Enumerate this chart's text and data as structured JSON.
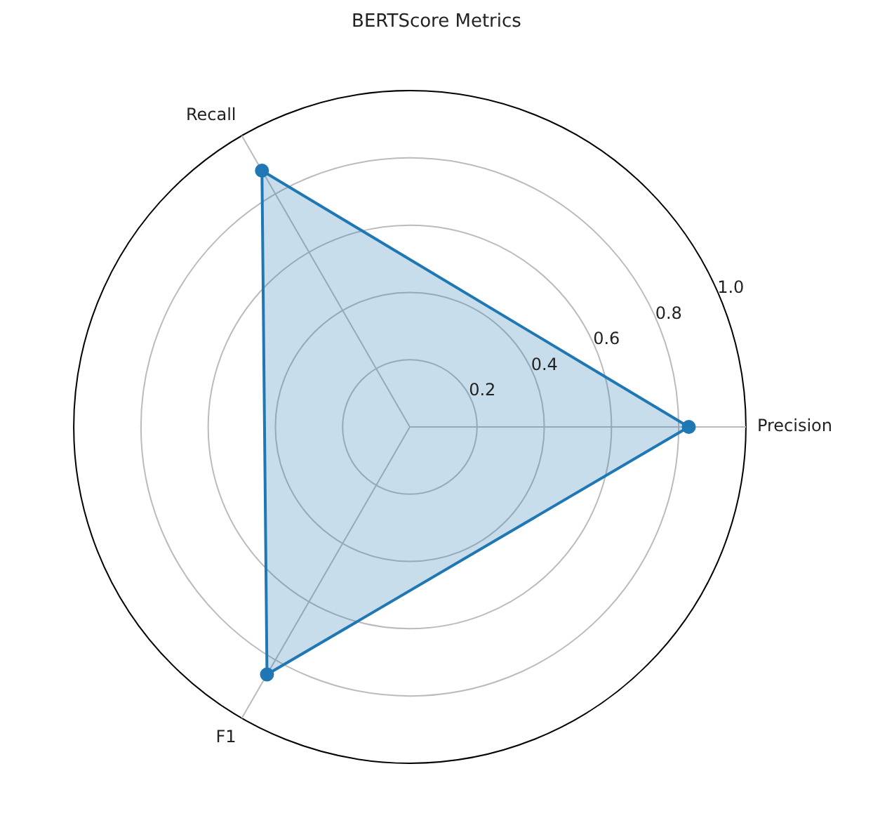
{
  "chart_data": {
    "type": "radar",
    "title": "BERTScore Metrics",
    "categories": [
      "Precision",
      "F1",
      "Recall"
    ],
    "series": [
      {
        "color": "#1f77b4",
        "values": [
          0.83,
          0.85,
          0.88
        ]
      }
    ],
    "ylim": [
      0,
      1.0
    ],
    "yticks": [
      0.2,
      0.4,
      0.6,
      0.8,
      {
        "value": 1.0,
        "label": "1.0"
      }
    ],
    "grid": true,
    "marker": "circle",
    "legend": false
  }
}
